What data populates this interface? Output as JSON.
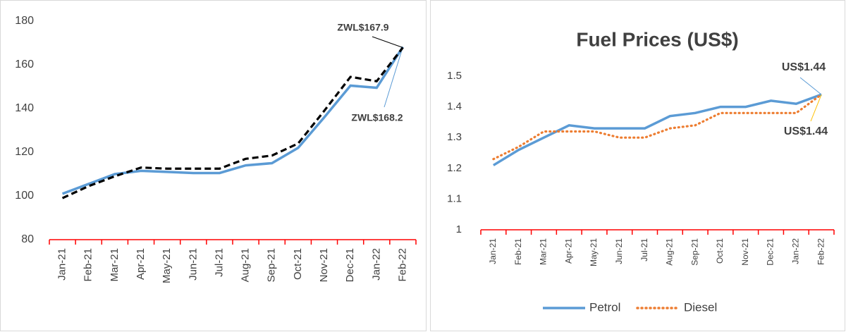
{
  "chart_data": [
    {
      "type": "line",
      "categories": [
        "Jan-21",
        "Feb-21",
        "Mar-21",
        "Apr-21",
        "May-21",
        "Jun-21",
        "Jul-21",
        "Aug-21",
        "Sep-21",
        "Oct-21",
        "Nov-21",
        "Dec-21",
        "Jan-22",
        "Feb-22"
      ],
      "series": [
        {
          "color": "#5b9bd5",
          "line_style": "solid",
          "values": [
            101,
            105.5,
            110,
            111.5,
            111,
            110.5,
            110.5,
            114,
            115,
            122,
            136,
            150.5,
            149.5,
            168.2
          ],
          "value_labels": [
            null,
            null,
            null,
            null,
            null,
            null,
            null,
            null,
            null,
            null,
            null,
            null,
            null,
            "ZWL$168.2"
          ]
        },
        {
          "color": "#000000",
          "line_style": "dashed",
          "values": [
            99,
            104.5,
            109,
            113,
            112.5,
            112.5,
            112.5,
            117,
            118.5,
            124,
            139,
            154.5,
            152.5,
            167.9
          ],
          "value_labels": [
            null,
            null,
            null,
            null,
            null,
            null,
            null,
            null,
            null,
            null,
            null,
            null,
            null,
            "ZWL$167.9"
          ]
        }
      ],
      "ylim": [
        80,
        180
      ],
      "yticks": [
        80,
        100,
        120,
        140,
        160,
        180
      ],
      "axis_color": "#ff0000"
    },
    {
      "type": "line",
      "title": "Fuel Prices (US$)",
      "categories": [
        "Jan-21",
        "Feb-21",
        "Mar-21",
        "Apr-21",
        "May-21",
        "Jun-21",
        "Jul-21",
        "Aug-21",
        "Sep-21",
        "Oct-21",
        "Nov-21",
        "Dec-21",
        "Jan-22",
        "Feb-22"
      ],
      "series": [
        {
          "name": "Petrol",
          "color": "#5b9bd5",
          "line_style": "solid",
          "values": [
            1.21,
            1.26,
            1.3,
            1.34,
            1.33,
            1.33,
            1.33,
            1.37,
            1.38,
            1.4,
            1.4,
            1.42,
            1.41,
            1.44
          ],
          "value_labels": [
            null,
            null,
            null,
            null,
            null,
            null,
            null,
            null,
            null,
            null,
            null,
            null,
            null,
            "US$1.44"
          ]
        },
        {
          "name": "Diesel",
          "color": "#ed7d31",
          "line_style": "dotted",
          "values": [
            1.23,
            1.27,
            1.32,
            1.32,
            1.32,
            1.3,
            1.3,
            1.33,
            1.34,
            1.38,
            1.38,
            1.38,
            1.38,
            1.44
          ],
          "value_labels": [
            null,
            null,
            null,
            null,
            null,
            null,
            null,
            null,
            null,
            null,
            null,
            null,
            null,
            "US$1.44"
          ]
        }
      ],
      "ylim": [
        1,
        1.5
      ],
      "yticks": [
        1,
        1.1,
        1.2,
        1.3,
        1.4,
        1.5
      ],
      "axis_color": "#ff0000",
      "legend": "bottom"
    }
  ]
}
